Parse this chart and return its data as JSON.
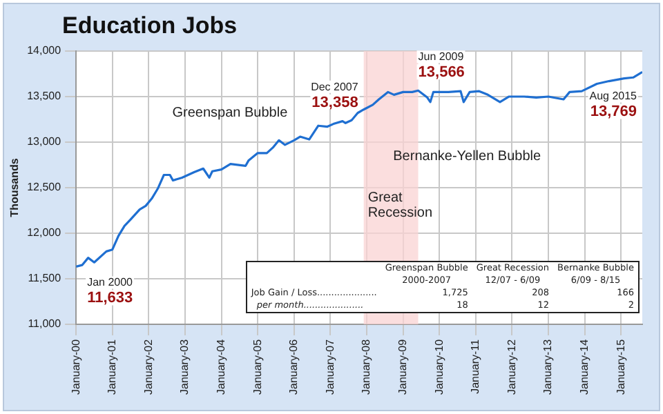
{
  "chart_data": {
    "type": "line",
    "title": "Education Jobs",
    "ylabel": "Thousands",
    "x": [
      "2000-01",
      "2000-03",
      "2000-05",
      "2000-07",
      "2000-11",
      "2001-01",
      "2001-03",
      "2001-05",
      "2001-07",
      "2001-10",
      "2001-12",
      "2002-02",
      "2002-04",
      "2002-06",
      "2002-08",
      "2002-09",
      "2002-12",
      "2003-02",
      "2003-04",
      "2003-07",
      "2003-09",
      "2003-10",
      "2004-01",
      "2004-04",
      "2004-09",
      "2004-10",
      "2005-01",
      "2005-04",
      "2005-06",
      "2005-08",
      "2005-10",
      "2006-01",
      "2006-03",
      "2006-06",
      "2006-09",
      "2006-12",
      "2007-02",
      "2007-05",
      "2007-06",
      "2007-08",
      "2007-10",
      "2007-12",
      "2008-03",
      "2008-05",
      "2008-08",
      "2008-10",
      "2009-01",
      "2009-04",
      "2009-06",
      "2009-09",
      "2009-10",
      "2009-11",
      "2010-04",
      "2010-08",
      "2010-09",
      "2010-11",
      "2011-02",
      "2011-05",
      "2011-09",
      "2011-12",
      "2012-05",
      "2012-09",
      "2013-01",
      "2013-06",
      "2013-08",
      "2013-12",
      "2014-05",
      "2014-09",
      "2015-02",
      "2015-05",
      "2015-08"
    ],
    "series": [
      {
        "color": "#1f6fd1",
        "values": [
          11633,
          11650,
          11730,
          11680,
          11800,
          11820,
          11970,
          12080,
          12150,
          12260,
          12300,
          12380,
          12490,
          12640,
          12640,
          12580,
          12610,
          12640,
          12670,
          12710,
          12610,
          12680,
          12700,
          12760,
          12740,
          12800,
          12880,
          12880,
          12940,
          13020,
          12970,
          13020,
          13060,
          13030,
          13180,
          13170,
          13200,
          13230,
          13210,
          13240,
          13320,
          13358,
          13410,
          13470,
          13550,
          13520,
          13550,
          13550,
          13566,
          13490,
          13440,
          13550,
          13550,
          13560,
          13440,
          13550,
          13560,
          13520,
          13440,
          13500,
          13500,
          13490,
          13500,
          13470,
          13550,
          13560,
          13640,
          13670,
          13700,
          13710,
          13769
        ]
      }
    ],
    "xlim": [
      "2000-01",
      "2015-08"
    ],
    "xticks": [
      {
        "value": "2000-01",
        "label": "January-00"
      },
      {
        "value": "2001-01",
        "label": "January-01"
      },
      {
        "value": "2002-01",
        "label": "January-02"
      },
      {
        "value": "2003-01",
        "label": "January-03"
      },
      {
        "value": "2004-01",
        "label": "January-04"
      },
      {
        "value": "2005-01",
        "label": "January-05"
      },
      {
        "value": "2006-01",
        "label": "January-06"
      },
      {
        "value": "2007-01",
        "label": "January-07"
      },
      {
        "value": "2008-01",
        "label": "January-08"
      },
      {
        "value": "2009-01",
        "label": "January-09"
      },
      {
        "value": "2010-01",
        "label": "January-10"
      },
      {
        "value": "2011-01",
        "label": "January-11"
      },
      {
        "value": "2012-01",
        "label": "January-12"
      },
      {
        "value": "2013-01",
        "label": "January-13"
      },
      {
        "value": "2014-01",
        "label": "January-14"
      },
      {
        "value": "2015-01",
        "label": "January-15"
      }
    ],
    "ylim": [
      11000,
      14000
    ],
    "yticks": [
      {
        "value": 11000,
        "label": "11,000"
      },
      {
        "value": 11500,
        "label": "11,500"
      },
      {
        "value": 12000,
        "label": "12,000"
      },
      {
        "value": 12500,
        "label": "12,500"
      },
      {
        "value": 13000,
        "label": "13,000"
      },
      {
        "value": 13500,
        "label": "13,500"
      },
      {
        "value": 14000,
        "label": "14,000"
      }
    ],
    "grid": true,
    "legend": false,
    "marker": "none",
    "line_style": "solid",
    "bands": [
      {
        "axis": "x",
        "from": "2007-12",
        "to": "2009-06",
        "label": "Great Recession",
        "color": "#f9d3d3"
      }
    ],
    "annotations": [
      {
        "text": "Jan 2000\n11,633",
        "x": "2000-01",
        "y": 11633
      },
      {
        "text": "Dec 2007\n13,358",
        "x": "2007-12",
        "y": 13358
      },
      {
        "text": "Jun 2009\n13,566",
        "x": "2009-06",
        "y": 13566
      },
      {
        "text": "Aug 2015\n13,769",
        "x": "2015-08",
        "y": 13769
      },
      "Greenspan Bubble",
      "Bernanke-Yellen Bubble",
      "Greenspan Bubble",
      "Great Recession",
      "Bernanke Bubble",
      "2000-2007",
      "12/07 - 6/09",
      "6/09 - 8/15",
      "Job Gain / Loss.....................",
      "1,725",
      "208",
      "166",
      "per month.....................",
      "18",
      "12",
      "2"
    ]
  }
}
